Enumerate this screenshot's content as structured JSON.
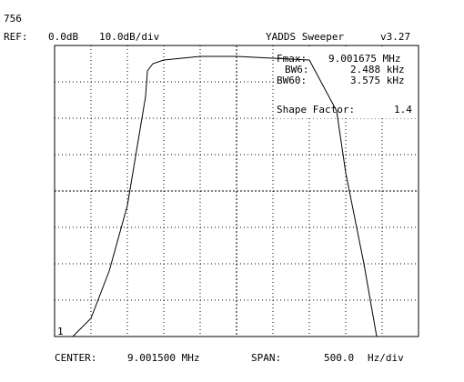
{
  "header": {
    "number": "756",
    "ref_label": "REF:",
    "ref_value": "0.0dB",
    "scale": "10.0dB/div",
    "app_title": "YADDS Sweeper",
    "version": "v3.27"
  },
  "measurements": {
    "fmax_label": "Fmax:",
    "fmax_value": "9.001675 MHz",
    "bw6_label": "BW6:",
    "bw6_value": "2.488 kHz",
    "bw60_label": "BW60:",
    "bw60_value": "3.575 kHz",
    "shape_label": "Shape Factor:",
    "shape_value": "1.4"
  },
  "footer": {
    "center_label": "CENTER:",
    "center_value": "9.001500 MHz",
    "span_label": "SPAN:",
    "span_value": "500.0",
    "span_unit": "Hz/div"
  },
  "marker_label": "1",
  "chart_data": {
    "type": "line",
    "grid": true,
    "xlim": [
      0,
      10
    ],
    "ylim": [
      -80,
      0
    ],
    "x": [
      0.5,
      1.0,
      1.5,
      2.0,
      2.5,
      2.55,
      2.7,
      3.0,
      3.5,
      4.0,
      5.0,
      6.0,
      7.0,
      7.75,
      8.0,
      8.5,
      8.85,
      9.0,
      10.0
    ],
    "y": [
      -80,
      -75,
      -62,
      -44,
      -14,
      -7,
      -5,
      -4,
      -3.5,
      -3,
      -3,
      -3.5,
      -4,
      -18,
      -35,
      -60,
      -80,
      -80,
      -80
    ]
  }
}
